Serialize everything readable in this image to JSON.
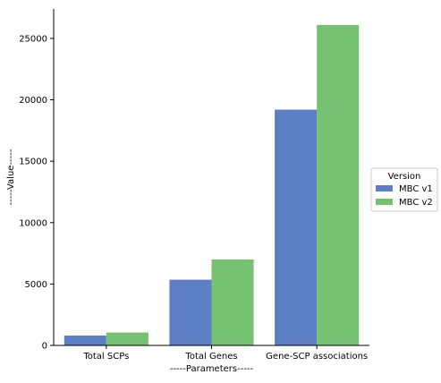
{
  "chart_data": {
    "type": "bar",
    "title": "",
    "xlabel": "-----Parameters-----",
    "ylabel": "-----Value-----",
    "categories": [
      "Total SCPs",
      "Total Genes",
      "Gene-SCP associations"
    ],
    "series": [
      {
        "name": "MBC v1",
        "color": "#5b7ec4",
        "values": [
          800,
          5350,
          19200
        ]
      },
      {
        "name": "MBC v2",
        "color": "#77c173",
        "values": [
          1050,
          7000,
          26100
        ]
      }
    ],
    "ylim": [
      0,
      27400
    ],
    "yticks": [
      0,
      5000,
      10000,
      15000,
      20000,
      25000
    ],
    "ytick_labels": [
      "0",
      "5000",
      "10000",
      "15000",
      "20000",
      "25000"
    ],
    "grid": false,
    "legend": {
      "title": "Version",
      "placement": "center-right outside"
    }
  }
}
